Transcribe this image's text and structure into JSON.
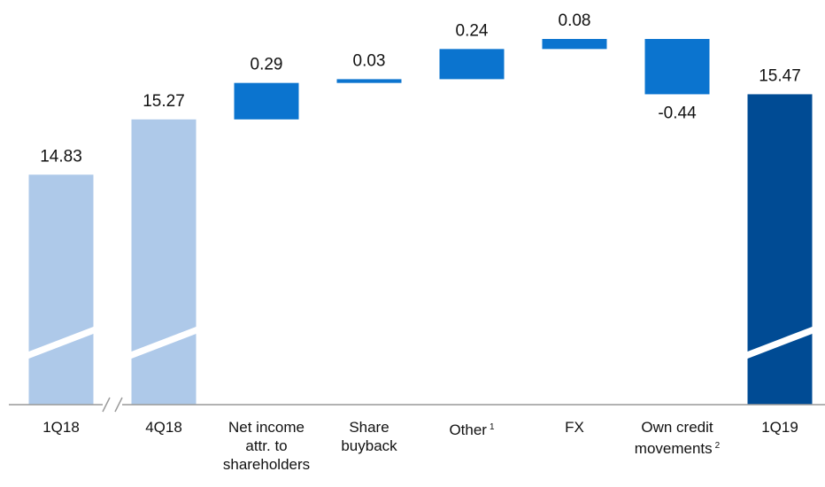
{
  "chart_data": {
    "type": "waterfall",
    "categories": [
      "1Q18",
      "4Q18",
      "Net income attr. to shareholders",
      "Share buyback",
      "Other",
      "FX",
      "Own credit movements",
      "1Q19"
    ],
    "footnotes": [
      null,
      null,
      null,
      null,
      "1",
      null,
      "2",
      null
    ],
    "values": [
      14.83,
      15.27,
      0.29,
      0.03,
      0.24,
      0.08,
      -0.44,
      15.47
    ],
    "measure": [
      "absolute",
      "absolute",
      "relative",
      "relative",
      "relative",
      "relative",
      "relative",
      "total"
    ],
    "colors": [
      "#aec9e9",
      "#aec9e9",
      "#0b74cf",
      "#0b74cf",
      "#0b74cf",
      "#0b74cf",
      "#0b74cf",
      "#004b94"
    ],
    "ylim": [
      13.0,
      16.22
    ]
  }
}
